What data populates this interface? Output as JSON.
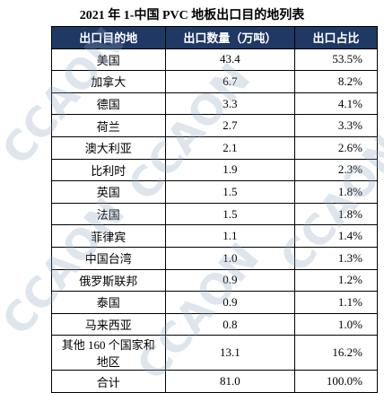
{
  "title": "2021 年 1-中国 PVC 地板出口目的地列表",
  "watermark": "CCAON",
  "table": {
    "header": [
      "出口目的地",
      "出口数量（万吨）",
      "出口占比"
    ],
    "rows": [
      [
        "美国",
        "43.4",
        "53.5%"
      ],
      [
        "加拿大",
        "6.7",
        "8.2%"
      ],
      [
        "德国",
        "3.3",
        "4.1%"
      ],
      [
        "荷兰",
        "2.7",
        "3.3%"
      ],
      [
        "澳大利亚",
        "2.1",
        "2.6%"
      ],
      [
        "比利时",
        "1.9",
        "2.3%"
      ],
      [
        "英国",
        "1.5",
        "1.8%"
      ],
      [
        "法国",
        "1.5",
        "1.8%"
      ],
      [
        "菲律宾",
        "1.1",
        "1.4%"
      ],
      [
        "中国台湾",
        "1.0",
        "1.3%"
      ],
      [
        "俄罗斯联邦",
        "0.9",
        "1.2%"
      ],
      [
        "泰国",
        "0.9",
        "1.1%"
      ],
      [
        "马来西亚",
        "0.8",
        "1.0%"
      ],
      [
        "其他 160 个国家和地区",
        "13.1",
        "16.2%"
      ],
      [
        "合计",
        "81.0",
        "100.0%"
      ]
    ]
  }
}
